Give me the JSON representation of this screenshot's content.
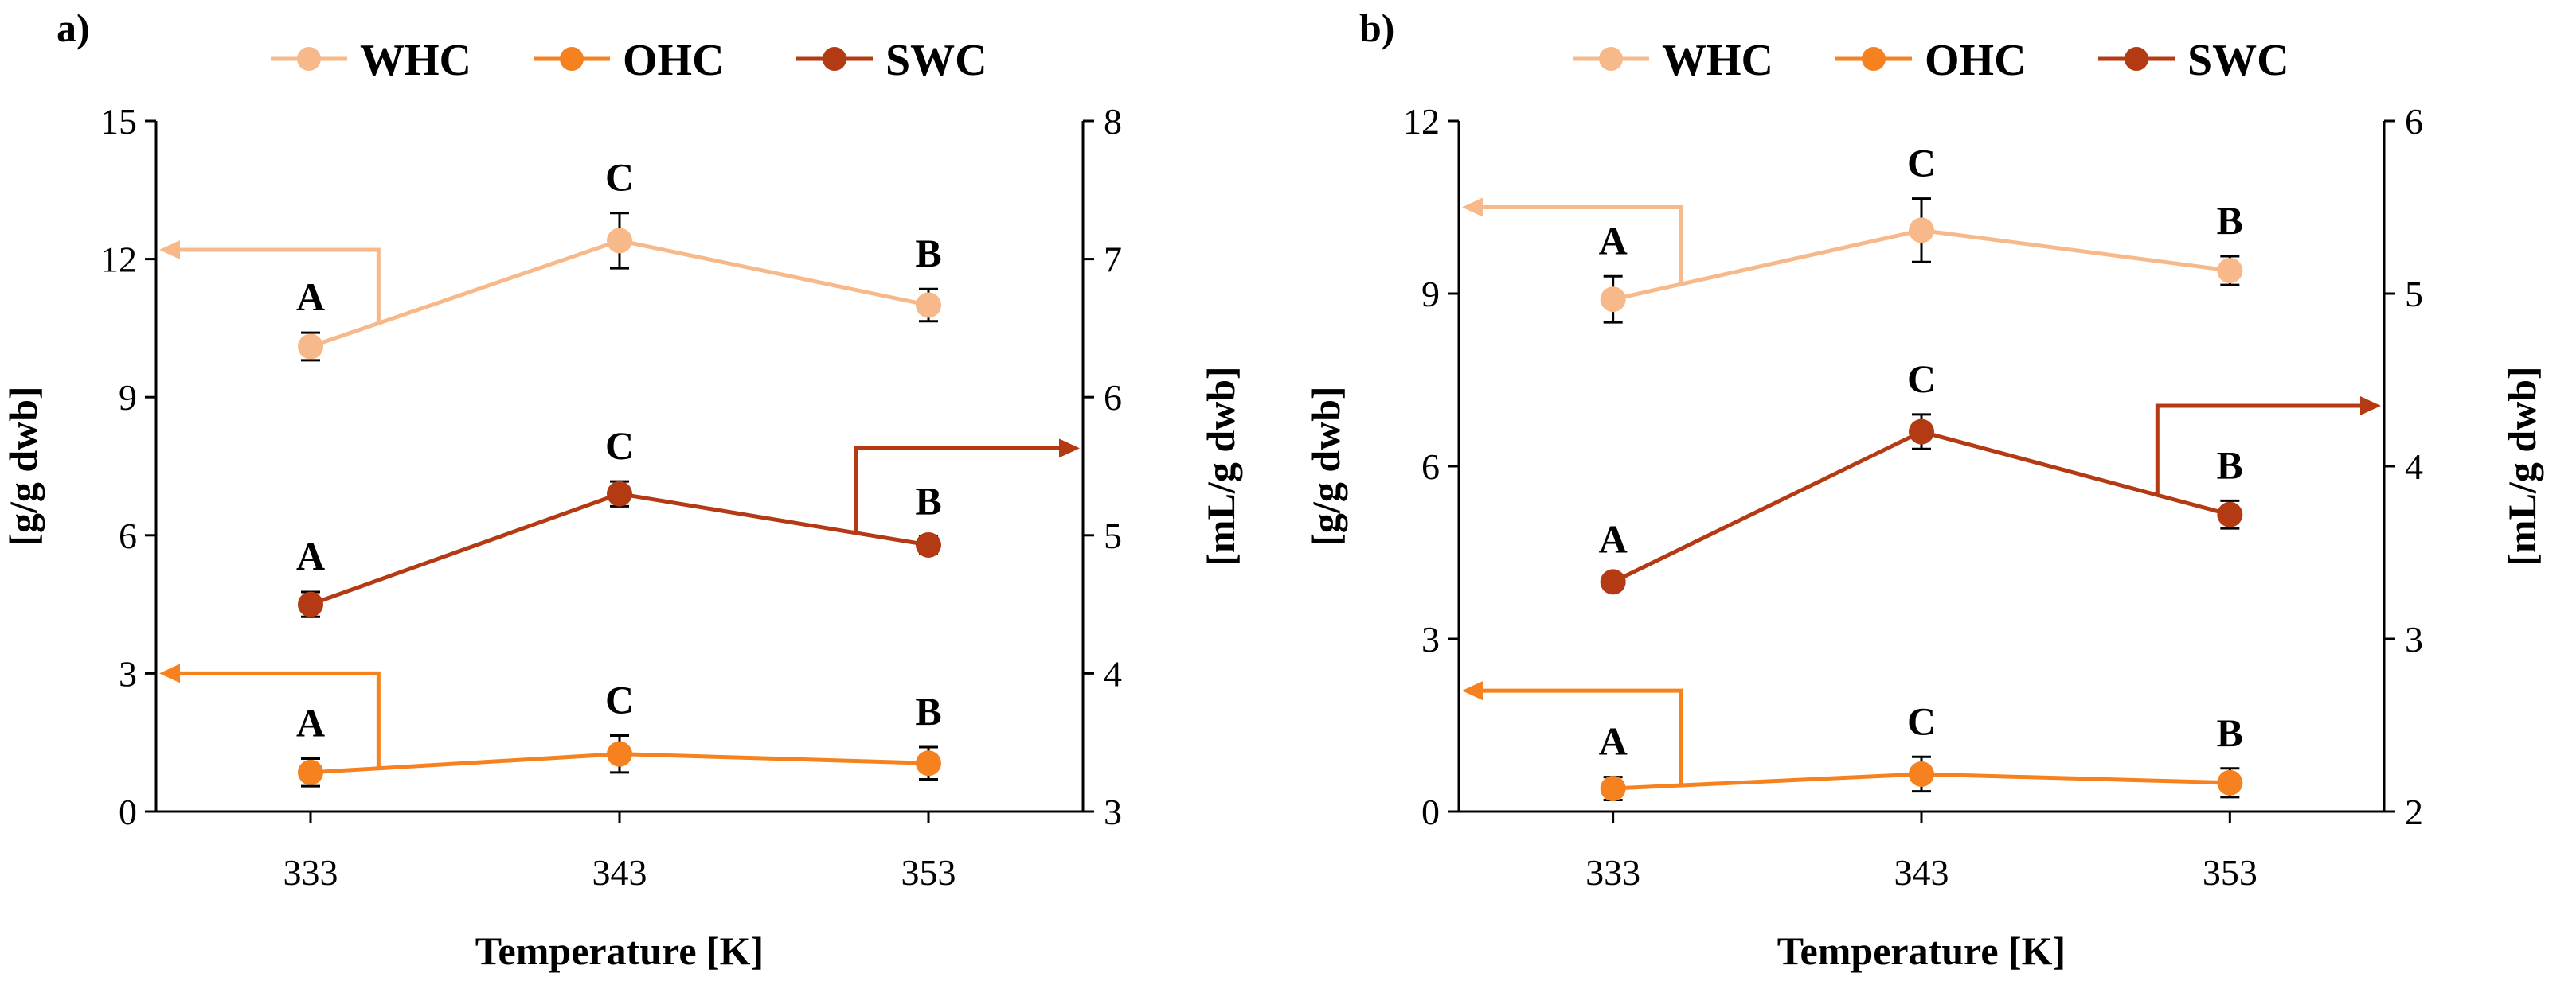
{
  "colors": {
    "WHC": "#f7b98a",
    "OHC": "#f5821f",
    "SWC": "#b33a12",
    "axis": "#000000"
  },
  "legend": [
    {
      "key": "WHC",
      "label": "WHC"
    },
    {
      "key": "OHC",
      "label": "OHC"
    },
    {
      "key": "SWC",
      "label": "SWC"
    }
  ],
  "chart_data": [
    {
      "panel": "a)",
      "type": "line",
      "categories": [
        "333",
        "343",
        "353"
      ],
      "xlabel": "Temperature [K]",
      "ylabel_left": "[g/g dwb]",
      "ylabel_right": "[mL/g dwb]",
      "ylim_left": [
        0,
        15
      ],
      "yticks_left": [
        "0",
        "3",
        "6",
        "9",
        "12",
        "15"
      ],
      "ylim_right": [
        3,
        8
      ],
      "yticks_right": [
        "3",
        "4",
        "5",
        "6",
        "7",
        "8"
      ],
      "series": [
        {
          "name": "WHC",
          "axis": "left",
          "values": [
            10.1,
            12.4,
            11.0
          ],
          "errors": [
            0.3,
            0.6,
            0.35
          ],
          "letters": [
            "A",
            "C",
            "B"
          ],
          "arrow": "left",
          "arrow_level": 12.2
        },
        {
          "name": "SWC",
          "axis": "right",
          "values": [
            4.5,
            5.3,
            4.93
          ],
          "errors": [
            0.09,
            0.09,
            0.06
          ],
          "letters": [
            "A",
            "C",
            "B"
          ],
          "arrow": "right",
          "arrow_level": 5.63
        },
        {
          "name": "OHC",
          "axis": "left",
          "values": [
            0.85,
            1.25,
            1.05
          ],
          "errors": [
            0.3,
            0.4,
            0.35
          ],
          "letters": [
            "A",
            "C",
            "B"
          ],
          "arrow": "left",
          "arrow_level": 3.0
        }
      ]
    },
    {
      "panel": "b)",
      "type": "line",
      "categories": [
        "333",
        "343",
        "353"
      ],
      "xlabel": "Temperature [K]",
      "ylabel_left": "[g/g dwb]",
      "ylabel_right": "[mL/g dwb]",
      "ylim_left": [
        0,
        12
      ],
      "yticks_left": [
        "0",
        "3",
        "6",
        "9",
        "12"
      ],
      "ylim_right": [
        2,
        6
      ],
      "yticks_right": [
        "2",
        "3",
        "4",
        "5",
        "6"
      ],
      "series": [
        {
          "name": "WHC",
          "axis": "left",
          "values": [
            8.9,
            10.1,
            9.4
          ],
          "errors": [
            0.4,
            0.55,
            0.25
          ],
          "letters": [
            "A",
            "C",
            "B"
          ],
          "arrow": "left",
          "arrow_level": 10.5
        },
        {
          "name": "SWC",
          "axis": "right",
          "values": [
            3.33,
            4.2,
            3.72
          ],
          "errors": [
            0.04,
            0.1,
            0.08
          ],
          "letters": [
            "A",
            "C",
            "B"
          ],
          "arrow": "right",
          "arrow_level": 4.35
        },
        {
          "name": "OHC",
          "axis": "left",
          "values": [
            0.4,
            0.65,
            0.5
          ],
          "errors": [
            0.2,
            0.3,
            0.25
          ],
          "letters": [
            "A",
            "C",
            "B"
          ],
          "arrow": "left",
          "arrow_level": 2.1
        }
      ]
    }
  ]
}
